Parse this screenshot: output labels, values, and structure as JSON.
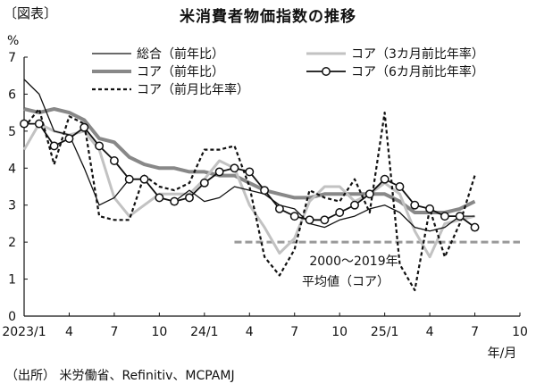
{
  "figure_tag": "〔図表〕",
  "title": "米消費者物価指数の推移",
  "source": "（出所） 米労働省、Refinitiv、MCPAMJ",
  "chart_data": {
    "type": "line",
    "title": "米消費者物価指数の推移",
    "ylabel": "%",
    "xlabel": "年/月",
    "ylim": [
      0,
      7
    ],
    "yticks": [
      0,
      1,
      2,
      3,
      4,
      5,
      6,
      7
    ],
    "xlim": [
      0,
      33
    ],
    "xticks": [
      {
        "x": 0,
        "label": "2023/1"
      },
      {
        "x": 3,
        "label": "4"
      },
      {
        "x": 6,
        "label": "7"
      },
      {
        "x": 9,
        "label": "10"
      },
      {
        "x": 12,
        "label": "24/1"
      },
      {
        "x": 15,
        "label": "4"
      },
      {
        "x": 18,
        "label": "7"
      },
      {
        "x": 21,
        "label": "10"
      },
      {
        "x": 24,
        "label": "25/1"
      },
      {
        "x": 27,
        "label": "4"
      },
      {
        "x": 30,
        "label": "7"
      },
      {
        "x": 33,
        "label": "10"
      }
    ],
    "grid": false,
    "legend": "top",
    "reference_line": {
      "value": 2.0,
      "label_line1": "2000～2019年",
      "label_line2": "平均値（コア）"
    },
    "series": [
      {
        "name": "総合（前年比）",
        "style": "thin-black",
        "values": [
          6.4,
          6.0,
          5.0,
          4.9,
          4.0,
          3.0,
          3.2,
          3.7,
          3.7,
          3.2,
          3.1,
          3.4,
          3.1,
          3.2,
          3.5,
          3.4,
          3.3,
          3.0,
          2.9,
          2.5,
          2.4,
          2.6,
          2.7,
          2.9,
          3.0,
          2.8,
          2.4,
          2.3,
          2.4,
          2.7,
          2.7
        ]
      },
      {
        "name": "コア（前年比）",
        "style": "thick-gray",
        "values": [
          5.6,
          5.5,
          5.6,
          5.5,
          5.3,
          4.8,
          4.7,
          4.3,
          4.1,
          4.0,
          4.0,
          3.9,
          3.9,
          3.8,
          3.8,
          3.6,
          3.4,
          3.3,
          3.2,
          3.2,
          3.3,
          3.3,
          3.3,
          3.3,
          3.3,
          3.1,
          2.8,
          2.8,
          2.8,
          2.9,
          3.1
        ]
      },
      {
        "name": "コア（前月比年率）",
        "style": "dotted-black",
        "values": [
          5.1,
          5.6,
          4.1,
          5.4,
          5.2,
          2.7,
          2.6,
          2.6,
          3.8,
          3.5,
          3.4,
          3.6,
          4.5,
          4.5,
          4.6,
          3.5,
          1.6,
          1.1,
          1.8,
          3.4,
          3.2,
          3.1,
          3.7,
          2.8,
          5.5,
          1.4,
          0.7,
          2.9,
          1.6,
          2.5,
          3.8
        ]
      },
      {
        "name": "コア（3カ月前比年率）",
        "style": "light-gray",
        "values": [
          4.5,
          5.2,
          5.0,
          4.9,
          5.0,
          4.5,
          3.2,
          2.7,
          3.0,
          3.3,
          3.3,
          3.3,
          3.7,
          4.2,
          4.0,
          3.0,
          2.4,
          1.7,
          2.1,
          3.1,
          3.5,
          3.5,
          3.1,
          3.3,
          3.6,
          3.3,
          2.3,
          1.6,
          2.5,
          2.6,
          2.7
        ]
      },
      {
        "name": "コア（6カ月前比年率）",
        "style": "black-circle",
        "values": [
          5.2,
          5.2,
          4.6,
          4.8,
          5.1,
          4.6,
          4.2,
          3.7,
          3.7,
          3.2,
          3.1,
          3.2,
          3.6,
          3.9,
          4.0,
          3.9,
          3.4,
          2.9,
          2.7,
          2.6,
          2.6,
          2.8,
          3.0,
          3.3,
          3.7,
          3.5,
          3.0,
          2.9,
          2.7,
          2.7,
          2.4
        ]
      }
    ]
  }
}
